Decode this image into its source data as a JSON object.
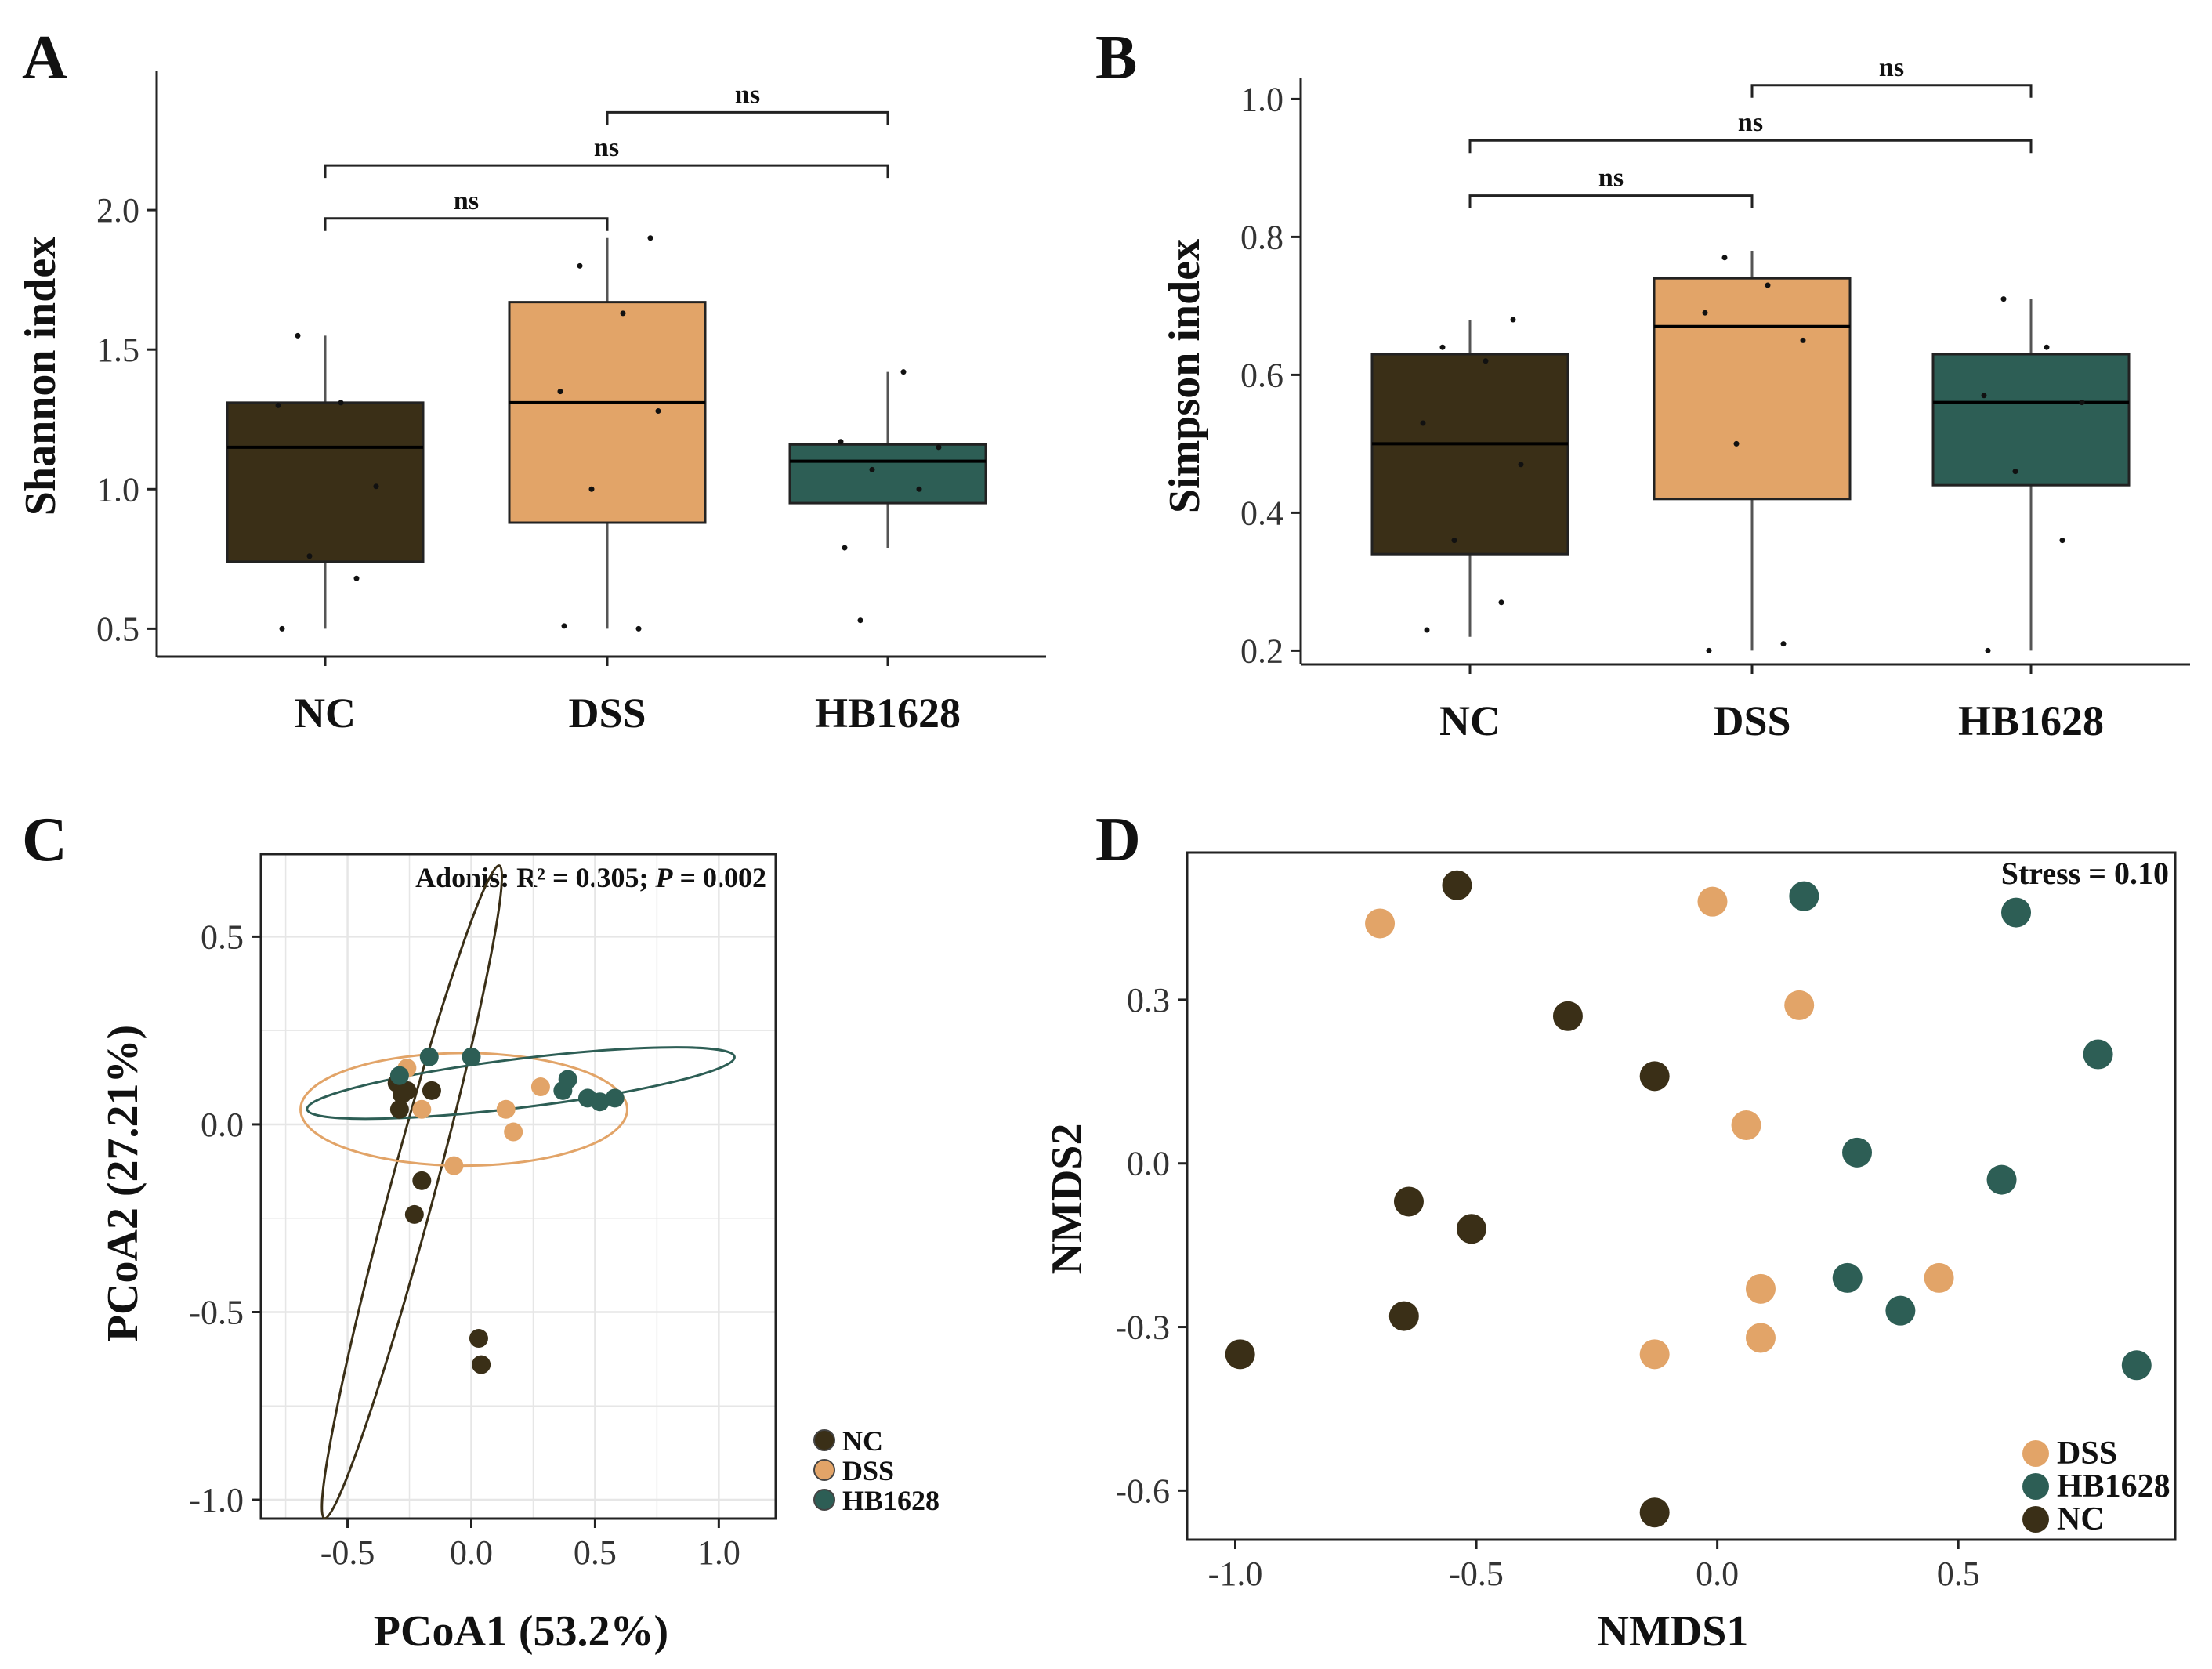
{
  "colors": {
    "NC": "#3a2f17",
    "DSS": "#e2a468",
    "HB1628": "#2d5e55",
    "axis": "#222222",
    "grid": "#e6e6e6"
  },
  "chart_data": [
    {
      "panel": "A",
      "type": "box",
      "ylabel": "Shannon index",
      "ylim": [
        0.4,
        2.5
      ],
      "yticks": [
        "0.5",
        "1.0",
        "1.5",
        "2.0"
      ],
      "categories": [
        "NC",
        "DSS",
        "HB1628"
      ],
      "boxes": [
        {
          "name": "NC",
          "whisker_low": 0.5,
          "q1": 0.74,
          "median": 1.15,
          "q3": 1.31,
          "whisker_high": 1.55
        },
        {
          "name": "DSS",
          "whisker_low": 0.5,
          "q1": 0.88,
          "median": 1.31,
          "q3": 1.67,
          "whisker_high": 1.9
        },
        {
          "name": "HB1628",
          "whisker_low": 0.79,
          "q1": 0.95,
          "median": 1.1,
          "q3": 1.16,
          "whisker_high": 1.42
        }
      ],
      "points": [
        {
          "group": "NC",
          "values": [
            0.5,
            0.68,
            0.76,
            1.01,
            1.3,
            1.31,
            1.55
          ]
        },
        {
          "group": "DSS",
          "values": [
            0.51,
            0.5,
            1.0,
            1.28,
            1.35,
            1.63,
            1.8,
            1.9
          ]
        },
        {
          "group": "HB1628",
          "values": [
            0.79,
            1.0,
            1.07,
            1.15,
            1.17,
            1.42,
            0.53
          ]
        }
      ],
      "comparisons": [
        {
          "from": "NC",
          "to": "DSS",
          "label": "ns",
          "y": 1.97
        },
        {
          "from": "NC",
          "to": "HB1628",
          "label": "ns",
          "y": 2.16
        },
        {
          "from": "DSS",
          "to": "HB1628",
          "label": "ns",
          "y": 2.35
        }
      ]
    },
    {
      "panel": "B",
      "type": "box",
      "ylabel": "Simpson index",
      "ylim": [
        0.18,
        1.03
      ],
      "yticks": [
        "0.2",
        "0.4",
        "0.6",
        "0.8",
        "1.0"
      ],
      "categories": [
        "NC",
        "DSS",
        "HB1628"
      ],
      "boxes": [
        {
          "name": "NC",
          "whisker_low": 0.22,
          "q1": 0.34,
          "median": 0.5,
          "q3": 0.63,
          "whisker_high": 0.68
        },
        {
          "name": "DSS",
          "whisker_low": 0.2,
          "q1": 0.42,
          "median": 0.67,
          "q3": 0.74,
          "whisker_high": 0.78
        },
        {
          "name": "HB1628",
          "whisker_low": 0.2,
          "q1": 0.44,
          "median": 0.56,
          "q3": 0.63,
          "whisker_high": 0.71
        }
      ],
      "points": [
        {
          "group": "NC",
          "values": [
            0.23,
            0.27,
            0.36,
            0.47,
            0.53,
            0.62,
            0.64,
            0.68
          ]
        },
        {
          "group": "DSS",
          "values": [
            0.2,
            0.21,
            0.5,
            0.65,
            0.69,
            0.73,
            0.77
          ]
        },
        {
          "group": "HB1628",
          "values": [
            0.2,
            0.36,
            0.46,
            0.56,
            0.57,
            0.64,
            0.71
          ]
        }
      ],
      "comparisons": [
        {
          "from": "NC",
          "to": "DSS",
          "label": "ns",
          "y": 0.86
        },
        {
          "from": "NC",
          "to": "HB1628",
          "label": "ns",
          "y": 0.94
        },
        {
          "from": "DSS",
          "to": "HB1628",
          "label": "ns",
          "y": 1.02
        }
      ]
    },
    {
      "panel": "C",
      "type": "scatter",
      "xlabel": "PCoA1 (53.2%)",
      "ylabel": "PCoA2 (27.21%)",
      "xlim": [
        -0.85,
        1.23
      ],
      "ylim": [
        -1.05,
        0.72
      ],
      "xticks": [
        -0.5,
        0.0,
        0.5,
        1.0
      ],
      "yticks": [
        -1.0,
        -0.5,
        0.0,
        0.5
      ],
      "xtick_labels": [
        "-0.5",
        "0.0",
        "0.5",
        "1.0"
      ],
      "ytick_labels": [
        "-1.0",
        "-0.5",
        "0.0",
        "0.5"
      ],
      "annotation": {
        "prefix": "Adonis: R² = 0.305; ",
        "p_symbol": "P",
        "suffix": " = 0.002"
      },
      "legend": [
        "NC",
        "DSS",
        "HB1628"
      ],
      "series": [
        {
          "name": "NC",
          "points": [
            [
              -0.3,
              0.11
            ],
            [
              -0.28,
              0.08
            ],
            [
              -0.26,
              0.09
            ],
            [
              -0.16,
              0.09
            ],
            [
              -0.29,
              0.04
            ],
            [
              -0.2,
              -0.15
            ],
            [
              -0.23,
              -0.24
            ],
            [
              0.03,
              -0.57
            ],
            [
              0.04,
              -0.64
            ]
          ]
        },
        {
          "name": "DSS",
          "points": [
            [
              -0.26,
              0.15
            ],
            [
              -0.2,
              0.04
            ],
            [
              -0.07,
              -0.11
            ],
            [
              0.14,
              0.04
            ],
            [
              0.17,
              -0.02
            ],
            [
              0.28,
              0.1
            ]
          ]
        },
        {
          "name": "HB1628",
          "points": [
            [
              -0.29,
              0.13
            ],
            [
              -0.17,
              0.18
            ],
            [
              0.0,
              0.18
            ],
            [
              0.37,
              0.09
            ],
            [
              0.39,
              0.12
            ],
            [
              0.47,
              0.07
            ],
            [
              0.52,
              0.06
            ],
            [
              0.58,
              0.07
            ]
          ]
        }
      ],
      "ellipses": [
        {
          "group": "NC",
          "center": [
            -0.24,
            -0.18
          ],
          "semi_axes": [
            0.09,
            0.9
          ],
          "angle_deg": 15
        },
        {
          "group": "DSS",
          "center": [
            -0.03,
            0.04
          ],
          "semi_axes": [
            0.66,
            0.15
          ],
          "angle_deg": 0
        },
        {
          "group": "HB1628",
          "center": [
            0.2,
            0.11
          ],
          "semi_axes": [
            0.87,
            0.065
          ],
          "angle_deg": -7
        }
      ]
    },
    {
      "panel": "D",
      "type": "scatter",
      "xlabel": "NMDS1",
      "ylabel": "NMDS2",
      "xlim": [
        -1.1,
        0.95
      ],
      "ylim": [
        -0.69,
        0.57
      ],
      "xticks": [
        -1.0,
        -0.5,
        0.0,
        0.5
      ],
      "yticks": [
        -0.6,
        -0.3,
        0.0,
        0.3
      ],
      "xtick_labels": [
        "-1.0",
        "-0.5",
        "0.0",
        "0.5"
      ],
      "ytick_labels": [
        "-0.6",
        "-0.3",
        "0.0",
        "0.3"
      ],
      "annotation": "Stress = 0.10",
      "legend": [
        "DSS",
        "HB1628",
        "NC"
      ],
      "series": [
        {
          "name": "DSS",
          "points": [
            [
              -0.7,
              0.44
            ],
            [
              -0.01,
              0.48
            ],
            [
              0.17,
              0.29
            ],
            [
              0.06,
              0.07
            ],
            [
              0.09,
              -0.23
            ],
            [
              0.46,
              -0.21
            ],
            [
              0.09,
              -0.32
            ],
            [
              -0.13,
              -0.35
            ]
          ]
        },
        {
          "name": "HB1628",
          "points": [
            [
              0.18,
              0.49
            ],
            [
              0.62,
              0.46
            ],
            [
              0.79,
              0.2
            ],
            [
              0.29,
              0.02
            ],
            [
              0.59,
              -0.03
            ],
            [
              0.27,
              -0.21
            ],
            [
              0.38,
              -0.27
            ],
            [
              0.87,
              -0.37
            ]
          ]
        },
        {
          "name": "NC",
          "points": [
            [
              -0.54,
              0.51
            ],
            [
              -0.31,
              0.27
            ],
            [
              -0.13,
              0.16
            ],
            [
              -0.64,
              -0.07
            ],
            [
              -0.51,
              -0.12
            ],
            [
              -0.65,
              -0.28
            ],
            [
              -0.99,
              -0.35
            ],
            [
              -0.13,
              -0.64
            ]
          ]
        }
      ]
    }
  ],
  "panel_labels": [
    "A",
    "B",
    "C",
    "D"
  ]
}
